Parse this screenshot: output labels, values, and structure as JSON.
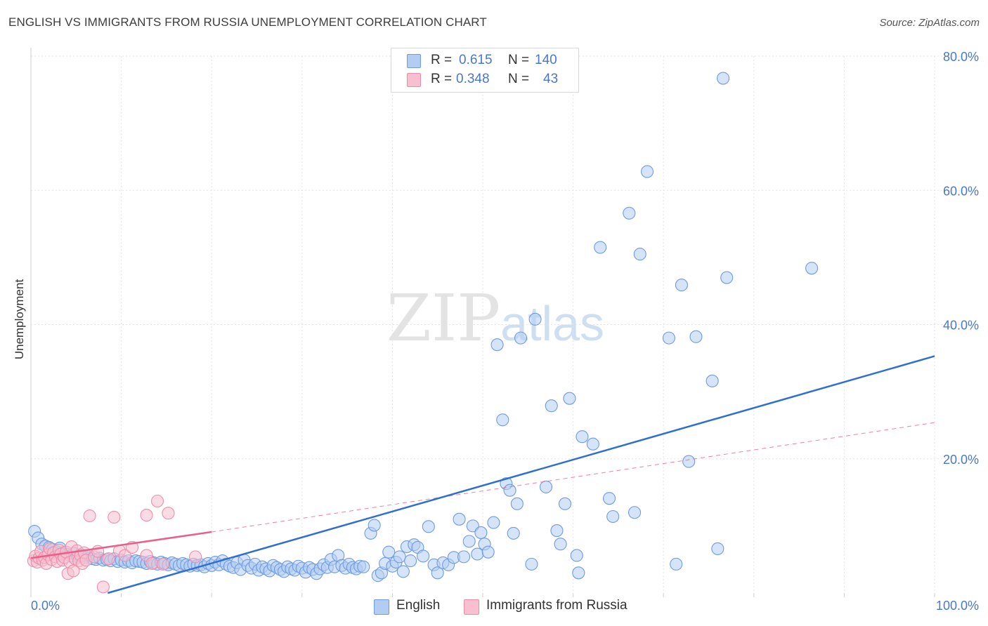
{
  "header": {
    "title": "ENGLISH VS IMMIGRANTS FROM RUSSIA UNEMPLOYMENT CORRELATION CHART",
    "source": "Source: ZipAtlas.com"
  },
  "legend": {
    "rows": [
      {
        "r_label": "R =",
        "r_value": "0.615",
        "n_label": "N =",
        "n_value": "140"
      },
      {
        "r_label": "R =",
        "r_value": "0.348",
        "n_label": "N =",
        "n_value": "43"
      }
    ]
  },
  "watermark": {
    "zip": "ZIP",
    "atlas": "atlas"
  },
  "colors": {
    "english_fill": "#b3cdf2",
    "english_stroke": "#6f9be0",
    "english_line": "#2f6fd0",
    "russia_fill": "#f7bfd0",
    "russia_stroke": "#ec8eab",
    "russia_line": "#e8608a",
    "grid": "#e3e3e3",
    "tick_label": "#4a78c8"
  },
  "chart_data": {
    "type": "scatter",
    "title": "ENGLISH VS IMMIGRANTS FROM RUSSIA UNEMPLOYMENT CORRELATION CHART",
    "xlabel": "",
    "ylabel": "Unemployment",
    "xlim": [
      0,
      100
    ],
    "ylim": [
      0,
      80
    ],
    "x_tick_labels": [
      "0.0%",
      "100.0%"
    ],
    "y_tick_labels": [
      "20.0%",
      "40.0%",
      "60.0%",
      "80.0%"
    ],
    "y_ticks": [
      20,
      40,
      60,
      80
    ],
    "grid": true,
    "legend_position": "top-center",
    "series": [
      {
        "name": "English",
        "trend": {
          "x": [
            8.5,
            100
          ],
          "y": [
            0,
            35.3
          ],
          "style": "solid"
        },
        "points": [
          [
            0.4,
            9.2
          ],
          [
            0.8,
            8.2
          ],
          [
            1.2,
            7.3
          ],
          [
            1.6,
            7.0
          ],
          [
            2.0,
            6.8
          ],
          [
            2.4,
            6.5
          ],
          [
            2.8,
            6.2
          ],
          [
            3.2,
            6.7
          ],
          [
            3.6,
            6.0
          ],
          [
            4.0,
            5.8
          ],
          [
            4.4,
            5.5
          ],
          [
            4.8,
            5.9
          ],
          [
            5.2,
            5.4
          ],
          [
            5.6,
            5.7
          ],
          [
            6.0,
            5.3
          ],
          [
            6.4,
            5.6
          ],
          [
            6.8,
            5.1
          ],
          [
            7.2,
            5.0
          ],
          [
            7.6,
            5.2
          ],
          [
            8.0,
            4.9
          ],
          [
            8.4,
            5.0
          ],
          [
            8.8,
            4.8
          ],
          [
            9.2,
            5.1
          ],
          [
            9.6,
            4.7
          ],
          [
            10.0,
            4.9
          ],
          [
            10.4,
            4.6
          ],
          [
            10.8,
            4.8
          ],
          [
            11.2,
            4.5
          ],
          [
            11.6,
            4.8
          ],
          [
            12.0,
            4.7
          ],
          [
            12.4,
            4.6
          ],
          [
            12.8,
            4.4
          ],
          [
            13.2,
            4.7
          ],
          [
            13.6,
            4.5
          ],
          [
            14.0,
            4.3
          ],
          [
            14.4,
            4.6
          ],
          [
            14.8,
            4.4
          ],
          [
            15.2,
            4.2
          ],
          [
            15.6,
            4.5
          ],
          [
            16.0,
            4.3
          ],
          [
            16.4,
            4.1
          ],
          [
            16.8,
            4.4
          ],
          [
            17.2,
            4.2
          ],
          [
            17.6,
            4.0
          ],
          [
            18.0,
            4.3
          ],
          [
            18.4,
            4.1
          ],
          [
            18.8,
            4.2
          ],
          [
            19.2,
            3.9
          ],
          [
            19.6,
            4.4
          ],
          [
            20.0,
            4.1
          ],
          [
            20.4,
            4.6
          ],
          [
            20.8,
            4.2
          ],
          [
            21.2,
            4.8
          ],
          [
            21.6,
            4.3
          ],
          [
            22.0,
            4.0
          ],
          [
            22.4,
            3.8
          ],
          [
            22.8,
            4.5
          ],
          [
            23.2,
            3.5
          ],
          [
            23.6,
            4.9
          ],
          [
            24.0,
            4.1
          ],
          [
            24.4,
            3.7
          ],
          [
            24.8,
            4.3
          ],
          [
            25.2,
            3.4
          ],
          [
            25.6,
            3.9
          ],
          [
            26.0,
            3.6
          ],
          [
            26.4,
            3.3
          ],
          [
            26.8,
            4.1
          ],
          [
            27.2,
            3.8
          ],
          [
            27.6,
            3.5
          ],
          [
            28.0,
            3.2
          ],
          [
            28.4,
            3.9
          ],
          [
            28.8,
            3.6
          ],
          [
            29.2,
            3.4
          ],
          [
            29.6,
            4.0
          ],
          [
            30.0,
            3.7
          ],
          [
            30.4,
            3.1
          ],
          [
            30.8,
            3.8
          ],
          [
            31.2,
            3.5
          ],
          [
            31.6,
            2.9
          ],
          [
            32.0,
            3.6
          ],
          [
            32.4,
            4.2
          ],
          [
            32.8,
            3.8
          ],
          [
            33.2,
            5.0
          ],
          [
            33.6,
            3.9
          ],
          [
            34.0,
            5.6
          ],
          [
            34.4,
            4.1
          ],
          [
            34.8,
            3.7
          ],
          [
            35.2,
            4.3
          ],
          [
            35.6,
            3.8
          ],
          [
            36.0,
            3.6
          ],
          [
            36.4,
            4.0
          ],
          [
            36.8,
            3.9
          ],
          [
            37.6,
            8.9
          ],
          [
            38.0,
            10.1
          ],
          [
            38.4,
            2.6
          ],
          [
            38.8,
            3.0
          ],
          [
            39.2,
            4.4
          ],
          [
            39.6,
            6.1
          ],
          [
            40.0,
            4.0
          ],
          [
            40.4,
            4.6
          ],
          [
            40.8,
            5.4
          ],
          [
            41.2,
            3.2
          ],
          [
            41.6,
            6.9
          ],
          [
            42.0,
            4.8
          ],
          [
            42.4,
            7.2
          ],
          [
            42.8,
            6.8
          ],
          [
            43.4,
            5.5
          ],
          [
            44.0,
            9.9
          ],
          [
            44.6,
            4.2
          ],
          [
            45.0,
            3.0
          ],
          [
            45.6,
            4.5
          ],
          [
            46.2,
            4.2
          ],
          [
            46.8,
            5.3
          ],
          [
            47.4,
            11.0
          ],
          [
            47.9,
            5.4
          ],
          [
            48.5,
            7.7
          ],
          [
            48.9,
            10.0
          ],
          [
            49.4,
            5.8
          ],
          [
            49.8,
            9.0
          ],
          [
            50.2,
            7.3
          ],
          [
            50.6,
            6.1
          ],
          [
            51.2,
            10.5
          ],
          [
            51.6,
            37.0
          ],
          [
            52.2,
            25.8
          ],
          [
            52.6,
            16.3
          ],
          [
            53.0,
            15.3
          ],
          [
            53.4,
            8.9
          ],
          [
            53.8,
            13.3
          ],
          [
            54.2,
            38.0
          ],
          [
            55.4,
            4.3
          ],
          [
            55.8,
            40.8
          ],
          [
            57.0,
            15.8
          ],
          [
            57.6,
            27.9
          ],
          [
            58.2,
            9.3
          ],
          [
            58.6,
            7.3
          ],
          [
            59.1,
            13.3
          ],
          [
            59.6,
            29.0
          ],
          [
            60.4,
            5.6
          ],
          [
            60.6,
            3.0
          ],
          [
            61.0,
            23.3
          ],
          [
            62.2,
            22.2
          ],
          [
            63.0,
            51.5
          ],
          [
            64.0,
            14.1
          ],
          [
            64.4,
            11.4
          ],
          [
            66.2,
            56.6
          ],
          [
            66.8,
            12.0
          ],
          [
            67.4,
            50.5
          ],
          [
            68.2,
            62.8
          ],
          [
            70.6,
            38.0
          ],
          [
            71.4,
            4.3
          ],
          [
            72.0,
            45.9
          ],
          [
            72.8,
            19.6
          ],
          [
            73.6,
            38.2
          ],
          [
            75.4,
            31.6
          ],
          [
            76.0,
            6.6
          ],
          [
            76.6,
            76.7
          ],
          [
            77.0,
            47.0
          ],
          [
            86.4,
            48.4
          ]
        ]
      },
      {
        "name": "Immigrants from Russia",
        "trend": {
          "x": [
            0,
            20
          ],
          "y": [
            5.2,
            9.1
          ],
          "style": "solid"
        },
        "trend_extension": {
          "x": [
            20,
            100
          ],
          "y": [
            9.1,
            25.4
          ],
          "style": "dashed"
        },
        "points": [
          [
            0.3,
            4.8
          ],
          [
            0.5,
            5.5
          ],
          [
            0.7,
            4.6
          ],
          [
            0.9,
            5.2
          ],
          [
            1.1,
            6.2
          ],
          [
            1.3,
            4.9
          ],
          [
            1.5,
            5.3
          ],
          [
            1.7,
            4.4
          ],
          [
            1.9,
            5.7
          ],
          [
            2.1,
            6.6
          ],
          [
            2.3,
            5.0
          ],
          [
            2.5,
            6.0
          ],
          [
            2.7,
            5.4
          ],
          [
            2.9,
            4.7
          ],
          [
            3.1,
            6.4
          ],
          [
            3.3,
            5.8
          ],
          [
            3.5,
            4.9
          ],
          [
            3.7,
            5.3
          ],
          [
            3.9,
            6.1
          ],
          [
            4.1,
            2.9
          ],
          [
            4.3,
            4.6
          ],
          [
            4.5,
            6.9
          ],
          [
            4.7,
            3.3
          ],
          [
            4.9,
            5.1
          ],
          [
            5.1,
            6.3
          ],
          [
            5.3,
            4.8
          ],
          [
            5.5,
            5.6
          ],
          [
            5.7,
            4.4
          ],
          [
            5.9,
            6.0
          ],
          [
            6.1,
            4.9
          ],
          [
            6.5,
            11.5
          ],
          [
            7.0,
            5.4
          ],
          [
            7.4,
            6.2
          ],
          [
            8.0,
            0.9
          ],
          [
            8.6,
            5.1
          ],
          [
            9.2,
            11.3
          ],
          [
            9.8,
            6.3
          ],
          [
            10.4,
            5.6
          ],
          [
            11.2,
            6.8
          ],
          [
            12.8,
            5.6
          ],
          [
            12.8,
            11.6
          ],
          [
            13.4,
            4.4
          ],
          [
            14.0,
            13.7
          ],
          [
            14.6,
            4.3
          ],
          [
            15.2,
            11.9
          ],
          [
            18.2,
            5.4
          ]
        ]
      }
    ]
  }
}
